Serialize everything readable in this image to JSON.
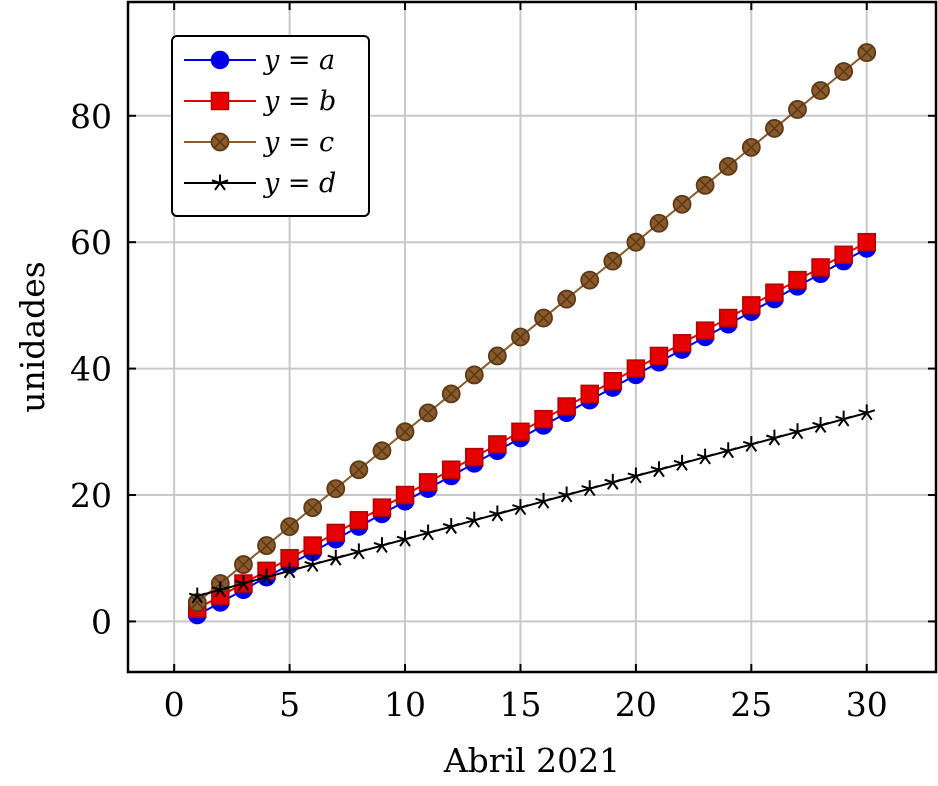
{
  "chart_data": {
    "type": "line",
    "xlabel": "Abril 2021",
    "ylabel": "unidades",
    "xlim": [
      -2,
      33
    ],
    "ylim": [
      -8,
      98
    ],
    "xticks": [
      0,
      5,
      10,
      15,
      20,
      25,
      30
    ],
    "yticks": [
      0,
      20,
      40,
      60,
      80
    ],
    "grid": true,
    "legend_position": "top-left",
    "x": [
      1,
      2,
      3,
      4,
      5,
      6,
      7,
      8,
      9,
      10,
      11,
      12,
      13,
      14,
      15,
      16,
      17,
      18,
      19,
      20,
      21,
      22,
      23,
      24,
      25,
      26,
      27,
      28,
      29,
      30
    ],
    "series": [
      {
        "name": "y = a",
        "color": "#0000e6",
        "marker": "circle",
        "values": [
          1,
          3,
          5,
          7,
          9,
          11,
          13,
          15,
          17,
          19,
          21,
          23,
          25,
          27,
          29,
          31,
          33,
          35,
          37,
          39,
          41,
          43,
          45,
          47,
          49,
          51,
          53,
          55,
          57,
          59
        ]
      },
      {
        "name": "y = b",
        "color": "#e60000",
        "marker": "square",
        "values": [
          2,
          4,
          6,
          8,
          10,
          12,
          14,
          16,
          18,
          20,
          22,
          24,
          26,
          28,
          30,
          32,
          34,
          36,
          38,
          40,
          42,
          44,
          46,
          48,
          50,
          52,
          54,
          56,
          58,
          60
        ]
      },
      {
        "name": "y = c",
        "color": "#8b5a2b",
        "marker": "crossed-circle",
        "values": [
          3,
          6,
          9,
          12,
          15,
          18,
          21,
          24,
          27,
          30,
          33,
          36,
          39,
          42,
          45,
          48,
          51,
          54,
          57,
          60,
          63,
          66,
          69,
          72,
          75,
          78,
          81,
          84,
          87,
          90
        ]
      },
      {
        "name": "y = d",
        "color": "#000000",
        "marker": "star",
        "values": [
          4,
          5,
          6,
          7,
          8,
          9,
          10,
          11,
          12,
          13,
          14,
          15,
          16,
          17,
          18,
          19,
          20,
          21,
          22,
          23,
          24,
          25,
          26,
          27,
          28,
          29,
          30,
          31,
          32,
          33
        ]
      }
    ]
  }
}
